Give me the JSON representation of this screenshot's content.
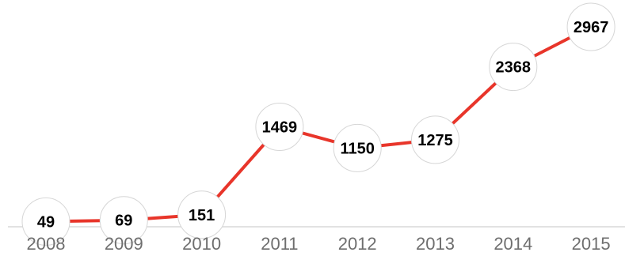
{
  "chart_data": {
    "type": "line",
    "categories": [
      "2008",
      "2009",
      "2010",
      "2011",
      "2012",
      "2013",
      "2014",
      "2015"
    ],
    "values": [
      49,
      69,
      151,
      1469,
      1150,
      1275,
      2368,
      2967
    ],
    "title": "",
    "xlabel": "",
    "ylabel": "",
    "ylim": [
      0,
      3000
    ],
    "grid": false,
    "legend": "none",
    "line_color": "#e8352a",
    "point_style": "white circles with value labels"
  }
}
